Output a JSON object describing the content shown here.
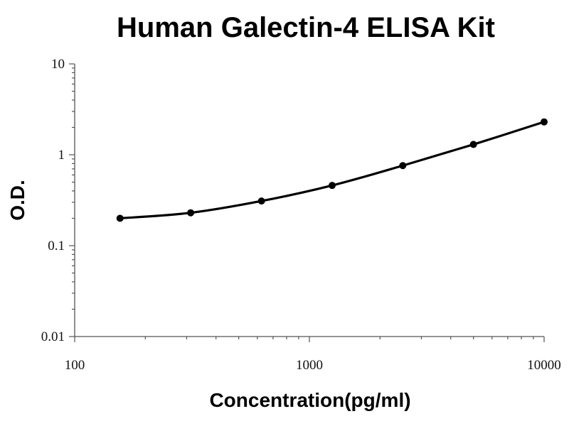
{
  "chart_data": {
    "type": "line",
    "title": "Human Galectin-4 ELISA Kit",
    "xlabel": "Concentration(pg/ml)",
    "ylabel": "O.D.",
    "x_scale": "log",
    "y_scale": "log",
    "xlim": [
      100,
      10000
    ],
    "ylim": [
      0.01,
      10
    ],
    "x_ticks": [
      100,
      1000,
      10000
    ],
    "x_tick_labels": [
      "100",
      "1000",
      "10000"
    ],
    "y_ticks": [
      0.01,
      0.1,
      1,
      10
    ],
    "y_tick_labels": [
      "0.01",
      "0.1",
      "1",
      "10"
    ],
    "grid": false,
    "series": [
      {
        "x": [
          156,
          312,
          625,
          1250,
          2500,
          5000,
          10000
        ],
        "y": [
          0.2,
          0.23,
          0.31,
          0.46,
          0.76,
          1.3,
          2.3
        ]
      }
    ]
  }
}
